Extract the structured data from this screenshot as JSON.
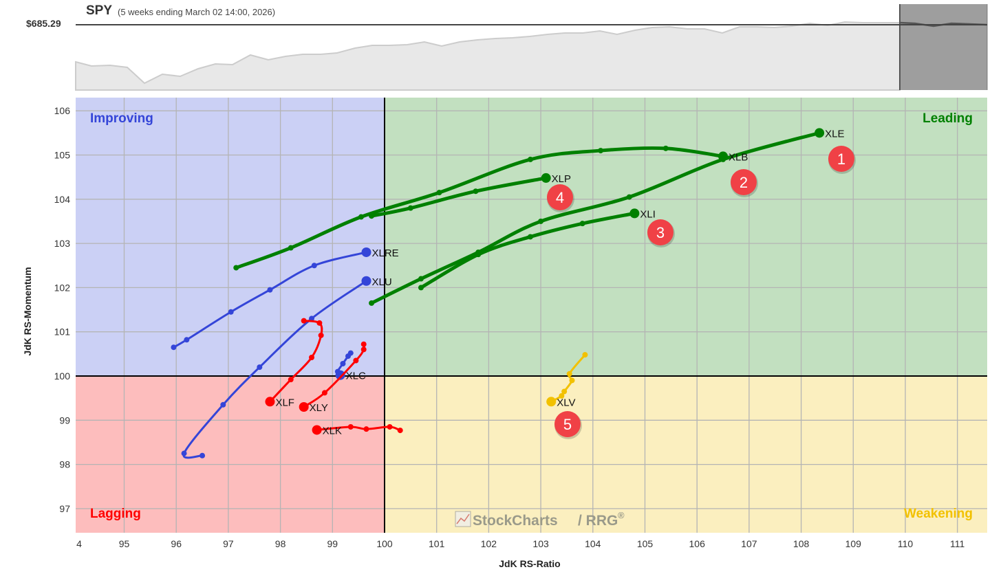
{
  "header": {
    "symbol": "SPY",
    "subtitle": "(5 weeks ending March 02 14:00, 2026)",
    "price_label": "$685.29"
  },
  "axes": {
    "x_label": "JdK RS-Ratio",
    "y_label": "JdK RS-Momentum",
    "x_ticks": [
      "4",
      "95",
      "96",
      "97",
      "98",
      "99",
      "100",
      "101",
      "102",
      "103",
      "104",
      "105",
      "106",
      "107",
      "108",
      "109",
      "110",
      "111"
    ],
    "y_ticks": [
      "106",
      "105",
      "104",
      "103",
      "102",
      "101",
      "100",
      "99",
      "98",
      "97"
    ]
  },
  "quadrants": {
    "improving": "Improving",
    "leading": "Leading",
    "lagging": "Lagging",
    "weakening": "Weakening"
  },
  "watermark": {
    "brand": "StockCharts",
    "product": "/ RRG",
    "reg": "®"
  },
  "colors": {
    "leading_bg": "#c2e0c0",
    "improving_bg": "#cbd0f5",
    "lagging_bg": "#fdbdbd",
    "weakening_bg": "#fbefbf",
    "leading": "#008000",
    "improving": "#3445d8",
    "lagging": "#ff0000",
    "weakening": "#f2c100",
    "badge": "#f04146"
  },
  "badges": [
    "1",
    "2",
    "3",
    "4",
    "5"
  ],
  "chart_data": {
    "type": "scatter",
    "title": "SPY Relative Rotation Graph (5 weeks ending March 02 14:00, 2026)",
    "xlabel": "JdK RS-Ratio",
    "ylabel": "JdK RS-Momentum",
    "xlim": [
      93.8,
      111.6
    ],
    "ylim": [
      96.6,
      106.3
    ],
    "grid": true,
    "benchmark": {
      "symbol": "SPY",
      "price": 685.29
    },
    "series": [
      {
        "name": "XLE",
        "quadrant": "Leading",
        "tail": [
          [
            99.75,
            101.65
          ],
          [
            100.7,
            102.2
          ],
          [
            101.8,
            102.8
          ],
          [
            103.0,
            103.5
          ],
          [
            104.7,
            104.05
          ],
          [
            106.5,
            104.9
          ],
          [
            108.35,
            105.5
          ]
        ]
      },
      {
        "name": "XLB",
        "quadrant": "Leading",
        "tail": [
          [
            97.15,
            102.45
          ],
          [
            98.2,
            102.9
          ],
          [
            99.55,
            103.6
          ],
          [
            101.05,
            104.15
          ],
          [
            102.8,
            104.9
          ],
          [
            104.15,
            105.1
          ],
          [
            105.4,
            105.15
          ],
          [
            106.5,
            104.97
          ]
        ]
      },
      {
        "name": "XLI",
        "quadrant": "Leading",
        "tail": [
          [
            100.7,
            102.0
          ],
          [
            101.8,
            102.75
          ],
          [
            102.8,
            103.15
          ],
          [
            103.8,
            103.45
          ],
          [
            104.8,
            103.68
          ]
        ]
      },
      {
        "name": "XLP",
        "quadrant": "Leading",
        "tail": [
          [
            99.75,
            103.62
          ],
          [
            100.5,
            103.8
          ],
          [
            101.75,
            104.18
          ],
          [
            103.1,
            104.48
          ]
        ]
      },
      {
        "name": "XLRE",
        "quadrant": "Improving",
        "tail": [
          [
            95.95,
            100.65
          ],
          [
            96.2,
            100.82
          ],
          [
            97.05,
            101.45
          ],
          [
            97.8,
            101.95
          ],
          [
            98.65,
            102.5
          ],
          [
            99.65,
            102.8
          ]
        ]
      },
      {
        "name": "XLU",
        "quadrant": "Improving",
        "tail": [
          [
            96.5,
            98.2
          ],
          [
            96.15,
            98.25
          ],
          [
            96.9,
            99.35
          ],
          [
            97.6,
            100.2
          ],
          [
            98.6,
            101.3
          ],
          [
            99.65,
            102.15
          ]
        ]
      },
      {
        "name": "XLC",
        "quadrant": "Improving",
        "tail": [
          [
            99.35,
            100.52
          ],
          [
            99.3,
            100.45
          ],
          [
            99.2,
            100.28
          ],
          [
            99.1,
            100.1
          ],
          [
            99.15,
            100.02
          ]
        ]
      },
      {
        "name": "XLF",
        "quadrant": "Lagging",
        "tail": [
          [
            98.45,
            101.25
          ],
          [
            98.75,
            101.2
          ],
          [
            98.78,
            100.92
          ],
          [
            98.6,
            100.42
          ],
          [
            98.2,
            99.92
          ],
          [
            97.8,
            99.42
          ]
        ]
      },
      {
        "name": "XLY",
        "quadrant": "Lagging",
        "tail": [
          [
            99.6,
            100.72
          ],
          [
            99.6,
            100.6
          ],
          [
            99.45,
            100.35
          ],
          [
            98.85,
            99.62
          ],
          [
            98.45,
            99.3
          ]
        ]
      },
      {
        "name": "XLK",
        "quadrant": "Lagging",
        "tail": [
          [
            100.3,
            98.77
          ],
          [
            100.1,
            98.85
          ],
          [
            99.65,
            98.8
          ],
          [
            99.35,
            98.85
          ],
          [
            98.7,
            98.78
          ]
        ]
      },
      {
        "name": "XLV",
        "quadrant": "Weakening",
        "tail": [
          [
            103.85,
            100.48
          ],
          [
            103.55,
            100.05
          ],
          [
            103.6,
            99.9
          ],
          [
            103.45,
            99.65
          ],
          [
            103.4,
            99.55
          ],
          [
            103.2,
            99.42
          ]
        ]
      }
    ],
    "annotations": [
      {
        "label": "1",
        "near": "XLE"
      },
      {
        "label": "2",
        "near": "XLB"
      },
      {
        "label": "3",
        "near": "XLI"
      },
      {
        "label": "4",
        "near": "XLP"
      },
      {
        "label": "5",
        "near": "XLV"
      }
    ]
  }
}
